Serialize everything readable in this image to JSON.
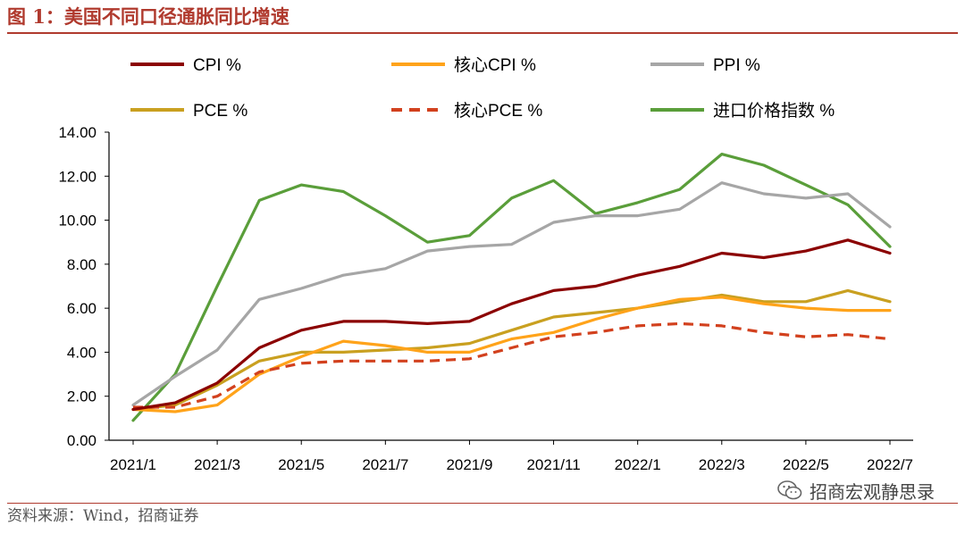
{
  "figure": {
    "title": "图 1：美国不同口径通胀同比增速",
    "source": "资料来源：Wind，招商证券",
    "watermark": "招商宏观静思录",
    "watermark_icon": "wechat-icon"
  },
  "chart_data": {
    "type": "line",
    "title": "图 1：美国不同口径通胀同比增速",
    "xlabel": "",
    "ylabel": "",
    "ylim": [
      0,
      14
    ],
    "yticks": [
      "0.00",
      "2.00",
      "4.00",
      "6.00",
      "8.00",
      "10.00",
      "12.00",
      "14.00"
    ],
    "x": [
      "2021/1",
      "2021/2",
      "2021/3",
      "2021/4",
      "2021/5",
      "2021/6",
      "2021/7",
      "2021/8",
      "2021/9",
      "2021/10",
      "2021/11",
      "2021/12",
      "2022/1",
      "2022/2",
      "2022/3",
      "2022/4",
      "2022/5",
      "2022/6",
      "2022/7"
    ],
    "xticks": [
      "2021/1",
      "2021/3",
      "2021/5",
      "2021/7",
      "2021/9",
      "2021/11",
      "2022/1",
      "2022/3",
      "2022/5",
      "2022/7"
    ],
    "grid": false,
    "legend_position": "top",
    "series": [
      {
        "name": "CPI %",
        "color": "#8b0000",
        "dash": false,
        "values": [
          1.4,
          1.7,
          2.6,
          4.2,
          5.0,
          5.4,
          5.4,
          5.3,
          5.4,
          6.2,
          6.8,
          7.0,
          7.5,
          7.9,
          8.5,
          8.3,
          8.6,
          9.1,
          8.5
        ]
      },
      {
        "name": "核心CPI %",
        "color": "#ffa31a",
        "dash": false,
        "values": [
          1.4,
          1.3,
          1.6,
          3.0,
          3.8,
          4.5,
          4.3,
          4.0,
          4.0,
          4.6,
          4.9,
          5.5,
          6.0,
          6.4,
          6.5,
          6.2,
          6.0,
          5.9,
          5.9
        ]
      },
      {
        "name": "PPI %",
        "color": "#a6a6a6",
        "dash": false,
        "values": [
          1.6,
          2.9,
          4.1,
          6.4,
          6.9,
          7.5,
          7.8,
          8.6,
          8.8,
          8.9,
          9.9,
          10.2,
          10.2,
          10.5,
          11.7,
          11.2,
          11.0,
          11.2,
          9.7
        ]
      },
      {
        "name": "PCE %",
        "color": "#c9a020",
        "dash": false,
        "values": [
          1.4,
          1.6,
          2.5,
          3.6,
          4.0,
          4.0,
          4.1,
          4.2,
          4.4,
          5.0,
          5.6,
          5.8,
          6.0,
          6.3,
          6.6,
          6.3,
          6.3,
          6.8,
          6.3
        ]
      },
      {
        "name": "核心PCE %",
        "color": "#d2411e",
        "dash": true,
        "values": [
          1.5,
          1.5,
          2.0,
          3.1,
          3.5,
          3.6,
          3.6,
          3.6,
          3.7,
          4.2,
          4.7,
          4.9,
          5.2,
          5.3,
          5.2,
          4.9,
          4.7,
          4.8,
          4.6
        ]
      },
      {
        "name": "进口价格指数 %",
        "color": "#5a9e3a",
        "dash": false,
        "values": [
          0.9,
          3.0,
          7.0,
          10.9,
          11.6,
          11.3,
          10.2,
          9.0,
          9.3,
          11.0,
          11.8,
          10.3,
          10.8,
          11.4,
          13.0,
          12.5,
          11.6,
          10.7,
          8.8
        ]
      }
    ]
  }
}
